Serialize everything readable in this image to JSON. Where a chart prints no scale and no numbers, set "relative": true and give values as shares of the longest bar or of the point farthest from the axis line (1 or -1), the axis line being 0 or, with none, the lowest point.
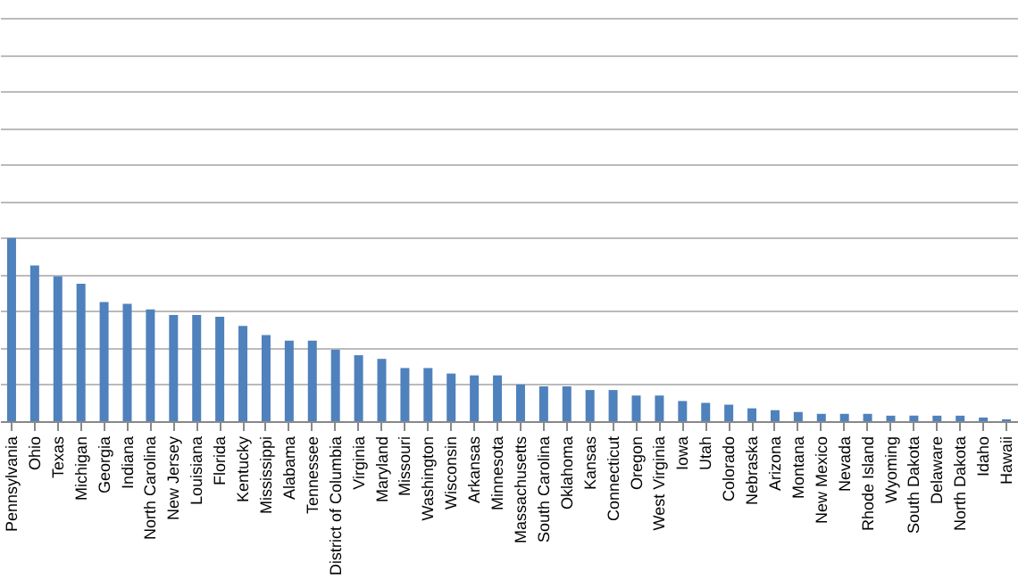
{
  "chart_data": {
    "type": "bar",
    "relative": true,
    "grid": "y",
    "color": "#4f81bd",
    "categories": [
      "Pennsylvania",
      "Ohio",
      "Texas",
      "Michigan",
      "Georgia",
      "Indiana",
      "North Carolina",
      "New Jersey",
      "Louisiana",
      "Florida",
      "Kentucky",
      "Mississippi",
      "Alabama",
      "Tennessee",
      "District of Columbia",
      "Virginia",
      "Maryland",
      "Missouri",
      "Washington",
      "Wisconsin",
      "Arkansas",
      "Minnesota",
      "Massachusetts",
      "South Carolina",
      "Oklahoma",
      "Kansas",
      "Connecticut",
      "Oregon",
      "West Virginia",
      "Iowa",
      "Utah",
      "Colorado",
      "Nebraska",
      "Arizona",
      "Montana",
      "New Mexico",
      "Nevada",
      "Rhode Island",
      "Wyoming",
      "South Dakota",
      "Delaware",
      "North Dakota",
      "Idaho",
      "Hawaii"
    ],
    "values": [
      1,
      0.85,
      0.79,
      0.75,
      0.65,
      0.64,
      0.61,
      0.58,
      0.58,
      0.57,
      0.52,
      0.47,
      0.44,
      0.44,
      0.39,
      0.36,
      0.34,
      0.29,
      0.29,
      0.26,
      0.25,
      0.25,
      0.2,
      0.19,
      0.19,
      0.17,
      0.17,
      0.14,
      0.14,
      0.11,
      0.1,
      0.09,
      0.07,
      0.06,
      0.05,
      0.04,
      0.04,
      0.04,
      0.03,
      0.03,
      0.03,
      0.03,
      0.02,
      0.01
    ]
  }
}
